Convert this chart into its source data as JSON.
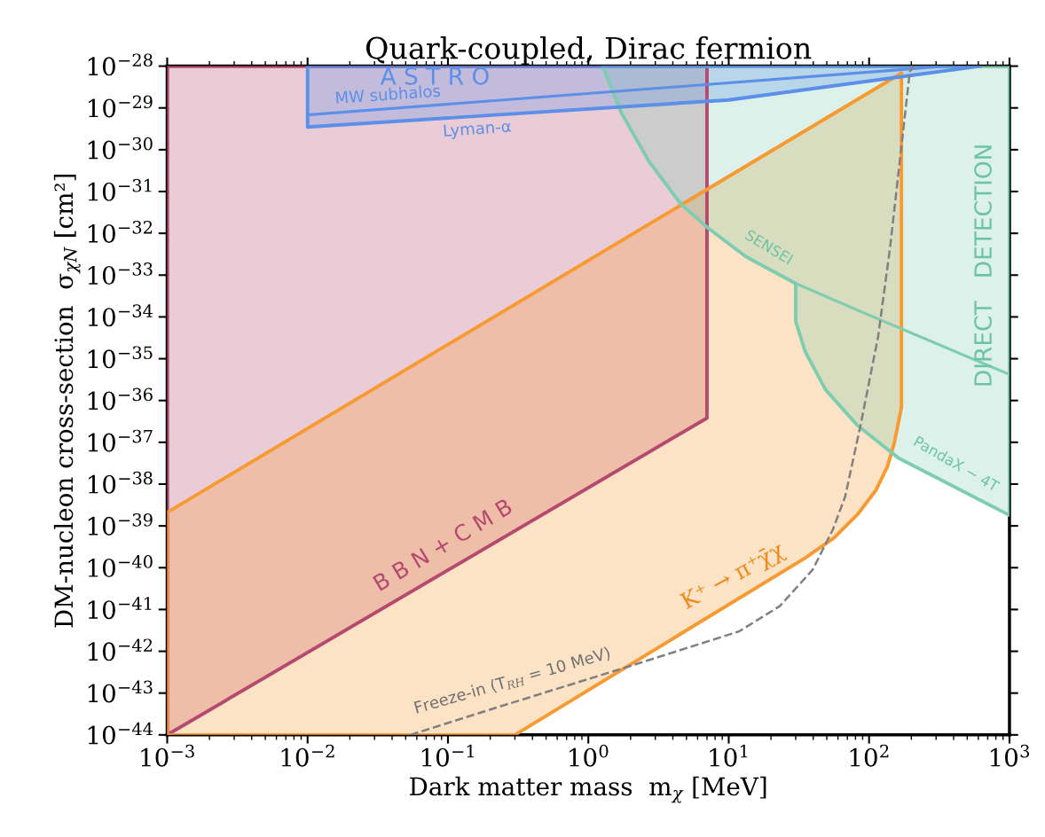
{
  "chart_data": {
    "type": "line",
    "title": "Quark-coupled, Dirac fermion",
    "xlabel": "Dark matter mass  m$_{χ}$ [MeV]",
    "ylabel": "DM-nucleon cross-section  σ$_{χN}$ [cm²]",
    "log": "xy",
    "grid": false,
    "legend": false,
    "xlim": [
      0.001,
      1000
    ],
    "ylim": [
      1e-44,
      1e-28
    ],
    "xticks": [
      {
        "value": 0.001,
        "label": "10$^{−3}$"
      },
      {
        "value": 0.01,
        "label": "10$^{−2}$"
      },
      {
        "value": 0.1,
        "label": "10$^{−1}$"
      },
      {
        "value": 1,
        "label": "10$^{0}$"
      },
      {
        "value": 10,
        "label": "10$^{1}$"
      },
      {
        "value": 100,
        "label": "10$^{2}$"
      },
      {
        "value": 1000,
        "label": "10$^{3}$"
      }
    ],
    "yticks": [
      {
        "value": 1e-44,
        "label": "10$^{−44}$"
      },
      {
        "value": 1e-43,
        "label": "10$^{−43}$"
      },
      {
        "value": 1e-42,
        "label": "10$^{−42}$"
      },
      {
        "value": 1e-41,
        "label": "10$^{−41}$"
      },
      {
        "value": 1e-40,
        "label": "10$^{−40}$"
      },
      {
        "value": 1e-39,
        "label": "10$^{−39}$"
      },
      {
        "value": 1e-38,
        "label": "10$^{−38}$"
      },
      {
        "value": 1e-37,
        "label": "10$^{−37}$"
      },
      {
        "value": 1e-36,
        "label": "10$^{−36}$"
      },
      {
        "value": 1e-35,
        "label": "10$^{−35}$"
      },
      {
        "value": 1e-34,
        "label": "10$^{−34}$"
      },
      {
        "value": 1e-33,
        "label": "10$^{−33}$"
      },
      {
        "value": 1e-32,
        "label": "10$^{−32}$"
      },
      {
        "value": 1e-31,
        "label": "10$^{−31}$"
      },
      {
        "value": 1e-30,
        "label": "10$^{−30}$"
      },
      {
        "value": 1e-29,
        "label": "10$^{−29}$"
      },
      {
        "value": 1e-28,
        "label": "10$^{−28}$"
      }
    ],
    "series": [
      {
        "type": "area",
        "color": "#b5496e",
        "x": [
          0.001,
          7.0,
          7.0,
          0.001
        ],
        "values": [
          1e-44,
          3.8e-37,
          1e-28,
          1e-28
        ]
      },
      {
        "type": "area",
        "color": "#f79a32",
        "x": [
          0.001,
          170,
          170,
          151,
          135,
          112,
          83,
          56,
          35,
          0.3,
          0.001
        ],
        "values": [
          2.1e-39,
          6.8e-29,
          6.8e-37,
          9.5e-38,
          2.6e-38,
          7.2e-39,
          1.9e-39,
          5.1e-40,
          1.7e-40,
          1e-44,
          1e-44
        ]
      },
      {
        "type": "area",
        "color": "#7fcdb0",
        "x": [
          1.26,
          1.71,
          2.69,
          4.54,
          7.0,
          13.2,
          30,
          30,
          35,
          49,
          83,
          162,
          1000,
          1000
        ],
        "values": [
          1e-28,
          7.9e-30,
          5.4e-31,
          5.1e-32,
          1.4e-32,
          2.8e-33,
          6.3e-34,
          7.8e-35,
          1.5e-35,
          1.8e-36,
          2.5e-37,
          4.2e-38,
          1.8e-39,
          1e-28
        ]
      },
      {
        "color": "#7fcdb0",
        "line_style": "solid",
        "x": [
          30,
          91,
          1000
        ],
        "values": [
          6.3e-34,
          1.26e-34,
          4.2e-36
        ]
      },
      {
        "type": "area",
        "color": "#5b8fe8",
        "x": [
          0.01,
          10,
          620,
          0.01
        ],
        "values": [
          3.5e-30,
          1.55e-29,
          1e-28,
          1e-28
        ]
      },
      {
        "color": "#5b8fe8",
        "line_style": "solid",
        "x": [
          0.01,
          360
        ],
        "values": [
          6.8e-30,
          1e-28
        ]
      },
      {
        "color": "#808080",
        "line_style": "dashed",
        "x": [
          0.054,
          0.217,
          1.84,
          11.9,
          23.1,
          39.6,
          55.3,
          67.6,
          87,
          116,
          141,
          166,
          195,
          209
        ],
        "values": [
          1e-44,
          4.4e-44,
          4.1e-43,
          3e-42,
          1.2e-41,
          8.9e-41,
          8.3e-40,
          5.1e-39,
          2.6e-37,
          3.4e-35,
          4.5e-33,
          5.9e-31,
          7.4e-29,
          1e-28
        ]
      }
    ],
    "annotations": [
      "A S T R O",
      "MW subhalos",
      "Lyman-α",
      "DIRECT   DETECTION",
      "SENSEI",
      "PandaX − 4T",
      "B B N + C M B",
      "K⁺ → π⁺χ̄χ",
      "Freeze-in (T$_{RH}$ = 10 MeV)"
    ]
  }
}
